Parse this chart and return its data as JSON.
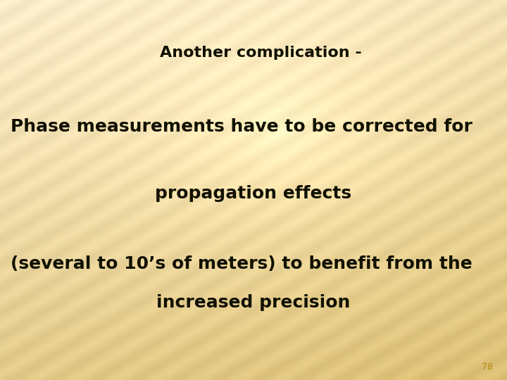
{
  "title": "Another complication -",
  "line1": "Phase measurements have to be corrected for",
  "line2": "propagation effects",
  "line3": "(several to 10’s of meters) to benefit from the",
  "line4": "increased precision",
  "page_number": "78",
  "text_color": "#111100",
  "page_num_color": "#b8860b",
  "title_fontsize": 16,
  "body_fontsize": 18,
  "page_fontsize": 9,
  "font_weight": "bold",
  "bg_base_light": [
    0.973,
    0.918,
    0.784
  ],
  "bg_base_dark": [
    0.855,
    0.745,
    0.451
  ],
  "stripe_amplitude": 0.04,
  "stripe_freq": 0.18
}
